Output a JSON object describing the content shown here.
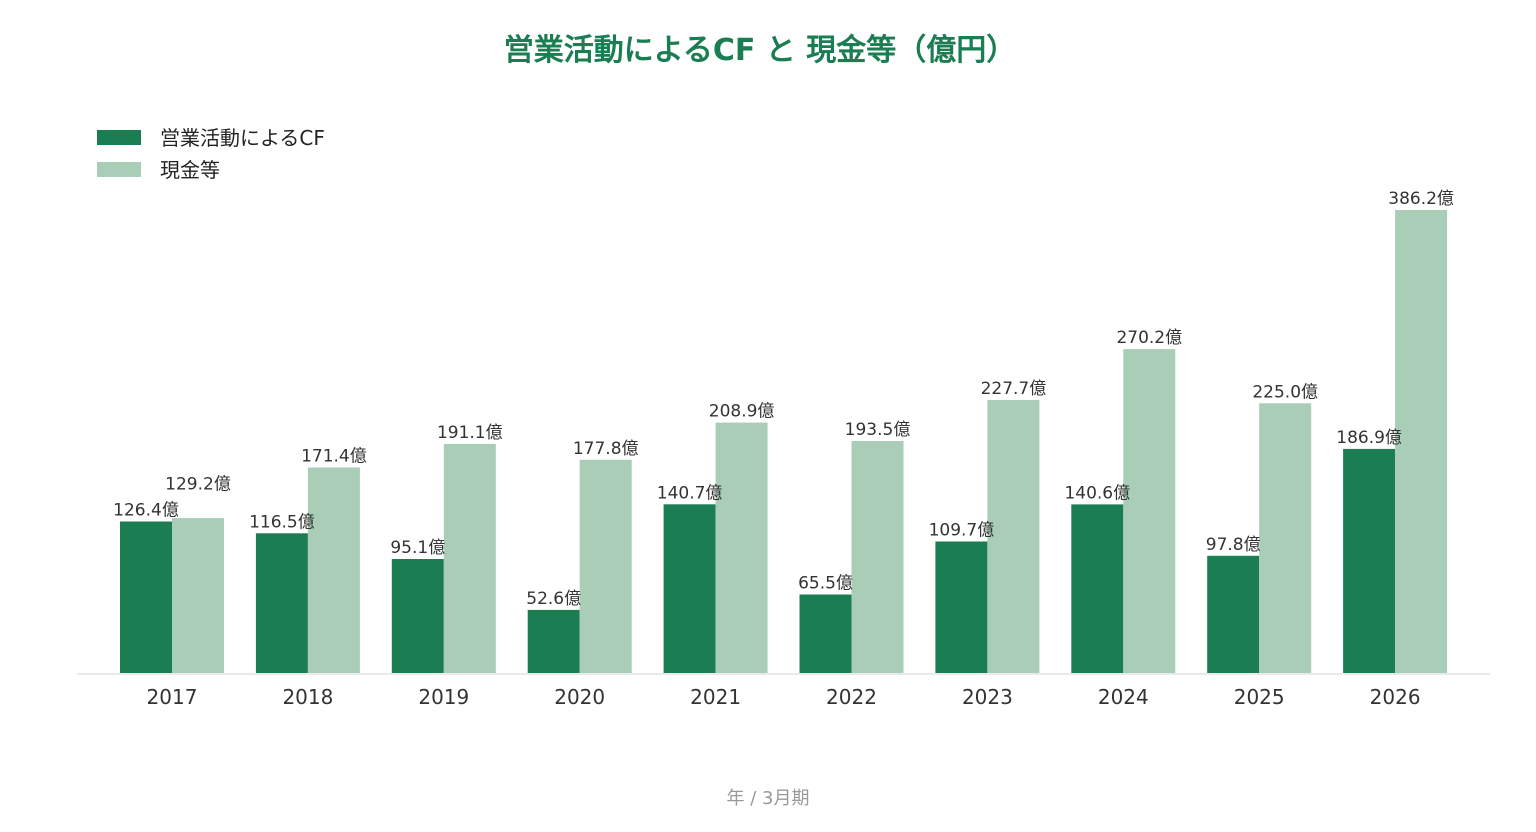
{
  "chart_data": {
    "type": "bar",
    "title": "営業活動によるCF と 現金等（億円）",
    "xlabel": "年 / 3月期",
    "ylabel": "",
    "categories": [
      "2017",
      "2018",
      "2019",
      "2020",
      "2021",
      "2022",
      "2023",
      "2024",
      "2025",
      "2026"
    ],
    "series": [
      {
        "name": "営業活動によるCF",
        "color": "#1b7d52",
        "values": [
          126.4,
          116.5,
          95.1,
          52.6,
          140.7,
          65.5,
          109.7,
          140.6,
          97.8,
          186.9
        ],
        "labels": [
          "126.4億",
          "116.5億",
          "95.1億",
          "52.6億",
          "140.7億",
          "65.5億",
          "109.7億",
          "140.6億",
          "97.8億",
          "186.9億"
        ]
      },
      {
        "name": "現金等",
        "color": "#a9cdb7",
        "values": [
          129.2,
          171.4,
          191.1,
          177.8,
          208.9,
          193.5,
          227.7,
          270.2,
          225.0,
          386.2
        ],
        "labels": [
          "129.2億",
          "171.4億",
          "191.1億",
          "177.8億",
          "208.9億",
          "193.5億",
          "227.7億",
          "270.2億",
          "225.0億",
          "386.2億"
        ]
      }
    ],
    "ylim": [
      0,
      386.2
    ],
    "grid": false,
    "legend": "top-left",
    "title_color": "#1b7d52"
  }
}
